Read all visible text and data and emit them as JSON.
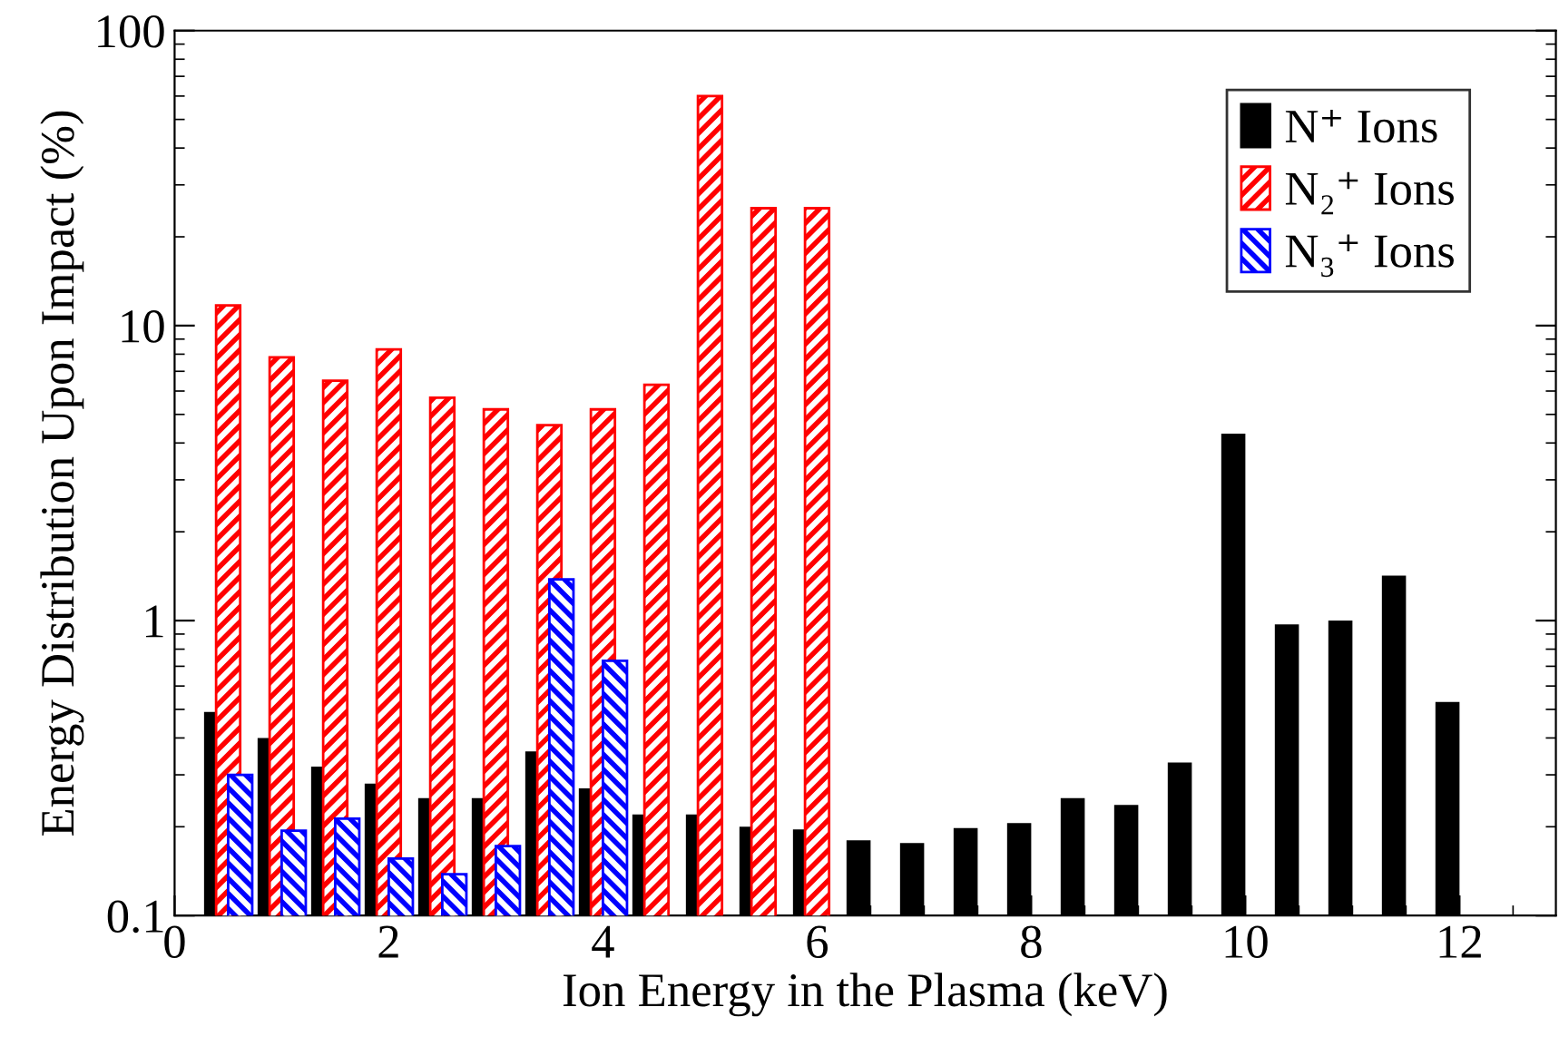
{
  "chart_data": {
    "type": "bar",
    "xlabel": "Ion Energy in the Plasma (keV)",
    "ylabel": "Energy Distribution Upon Impact (%)",
    "log": "y",
    "xlim": [
      0,
      12.9
    ],
    "xticks": [
      0,
      2,
      4,
      6,
      8,
      10,
      12
    ],
    "ylim": [
      0.1,
      100
    ],
    "yticks": [
      0.1,
      1,
      10,
      100
    ],
    "legend": "top right",
    "grid": false,
    "series": [
      {
        "name": "N⁺ Ions",
        "color": "#000000",
        "x": [
          0.5,
          1.0,
          1.5,
          2.0,
          2.5,
          3.0,
          3.5,
          4.0,
          4.5,
          5.0,
          5.5,
          6.0,
          6.5,
          7.0,
          7.5,
          8.0,
          8.5,
          9.0,
          9.5,
          10.0,
          10.5,
          11.0,
          11.5,
          12.0
        ],
        "values": [
          0.49,
          0.4,
          0.32,
          0.28,
          0.25,
          0.25,
          0.36,
          0.27,
          0.22,
          0.22,
          0.2,
          0.196,
          0.18,
          0.176,
          0.198,
          0.206,
          0.25,
          0.237,
          0.33,
          4.3,
          0.97,
          1.0,
          1.42,
          0.53
        ]
      },
      {
        "name": "N₂⁺ Ions",
        "color": "#ff0000",
        "x": [
          0.5,
          1.0,
          1.5,
          2.0,
          2.5,
          3.0,
          3.5,
          4.0,
          4.5,
          5.0,
          5.5,
          6.0
        ],
        "values": [
          11.7,
          7.8,
          6.5,
          8.3,
          5.7,
          5.2,
          4.6,
          5.2,
          6.3,
          60,
          25,
          25
        ]
      },
      {
        "name": "N₃⁺ Ions",
        "color": "#0000ff",
        "x": [
          0.5,
          1.0,
          1.5,
          2.0,
          2.5,
          3.0,
          3.5,
          4.0
        ],
        "values": [
          0.3,
          0.194,
          0.213,
          0.156,
          0.138,
          0.172,
          1.38,
          0.73
        ]
      }
    ]
  }
}
